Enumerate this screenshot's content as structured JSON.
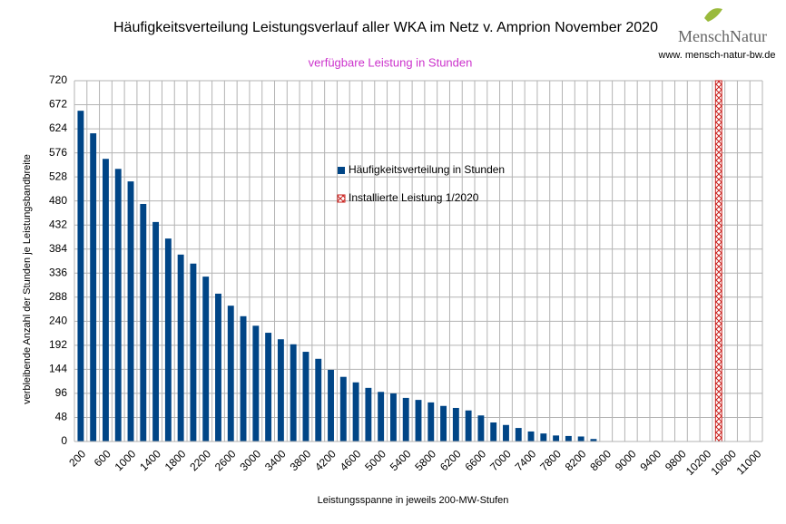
{
  "chart_data": {
    "type": "bar",
    "title": "Häufigkeitsverteilung Leistungsverlauf aller WKA im Netz v. Amprion November 2020",
    "subtitle": "verfügbare Leistung in Stunden",
    "logo": "MenschNatur",
    "website": "www. mensch-natur-bw.de",
    "y_label": "verbleibende Anzahl der Stunden je Leistungsbandbreite",
    "x_label": "Leistungsspanne in jeweils 200-MW-Stufen",
    "categories": [
      "200",
      null,
      "600",
      null,
      "1000",
      null,
      "1400",
      null,
      "1800",
      null,
      "2200",
      null,
      "2600",
      null,
      "3000",
      null,
      "3400",
      null,
      "3800",
      null,
      "4200",
      null,
      "4600",
      null,
      "5000",
      null,
      "5400",
      null,
      "5800",
      null,
      "6200",
      null,
      "6600",
      null,
      "7000",
      null,
      "7400",
      null,
      "7800",
      null,
      "8200",
      null,
      "8600",
      null,
      "9000",
      null,
      "9400",
      null,
      "9800",
      null,
      "10200",
      null,
      "10600",
      null,
      "11000"
    ],
    "series": [
      {
        "name": "Häufigkeitsverteilung in Stunden",
        "color": "#004586",
        "pattern": "solid",
        "values": [
          660,
          615,
          564,
          544,
          519,
          474,
          438,
          405,
          373,
          355,
          329,
          295,
          271,
          250,
          231,
          217,
          204,
          194,
          179,
          165,
          143,
          129,
          118,
          107,
          99,
          96,
          87,
          83,
          78,
          71,
          67,
          62,
          52,
          38,
          33,
          27,
          20,
          16,
          12,
          11,
          10,
          5,
          null,
          null,
          null,
          null,
          null,
          null,
          null,
          null,
          null,
          null,
          null,
          null,
          null
        ]
      },
      {
        "name": "Installierte Leistung 1/2020",
        "color": "#c9211e",
        "pattern": "cross-hatch",
        "values": [
          null,
          null,
          null,
          null,
          null,
          null,
          null,
          null,
          null,
          null,
          null,
          null,
          null,
          null,
          null,
          null,
          null,
          null,
          null,
          null,
          null,
          null,
          null,
          null,
          null,
          null,
          null,
          null,
          null,
          null,
          null,
          null,
          null,
          null,
          null,
          null,
          null,
          null,
          null,
          null,
          null,
          null,
          null,
          null,
          null,
          null,
          null,
          null,
          null,
          null,
          null,
          720,
          null,
          null,
          null
        ]
      }
    ],
    "ylim": [
      0,
      720
    ],
    "yticks": [
      0,
      48,
      96,
      144,
      192,
      240,
      288,
      336,
      384,
      432,
      480,
      528,
      576,
      624,
      672,
      720
    ],
    "grid": true
  }
}
